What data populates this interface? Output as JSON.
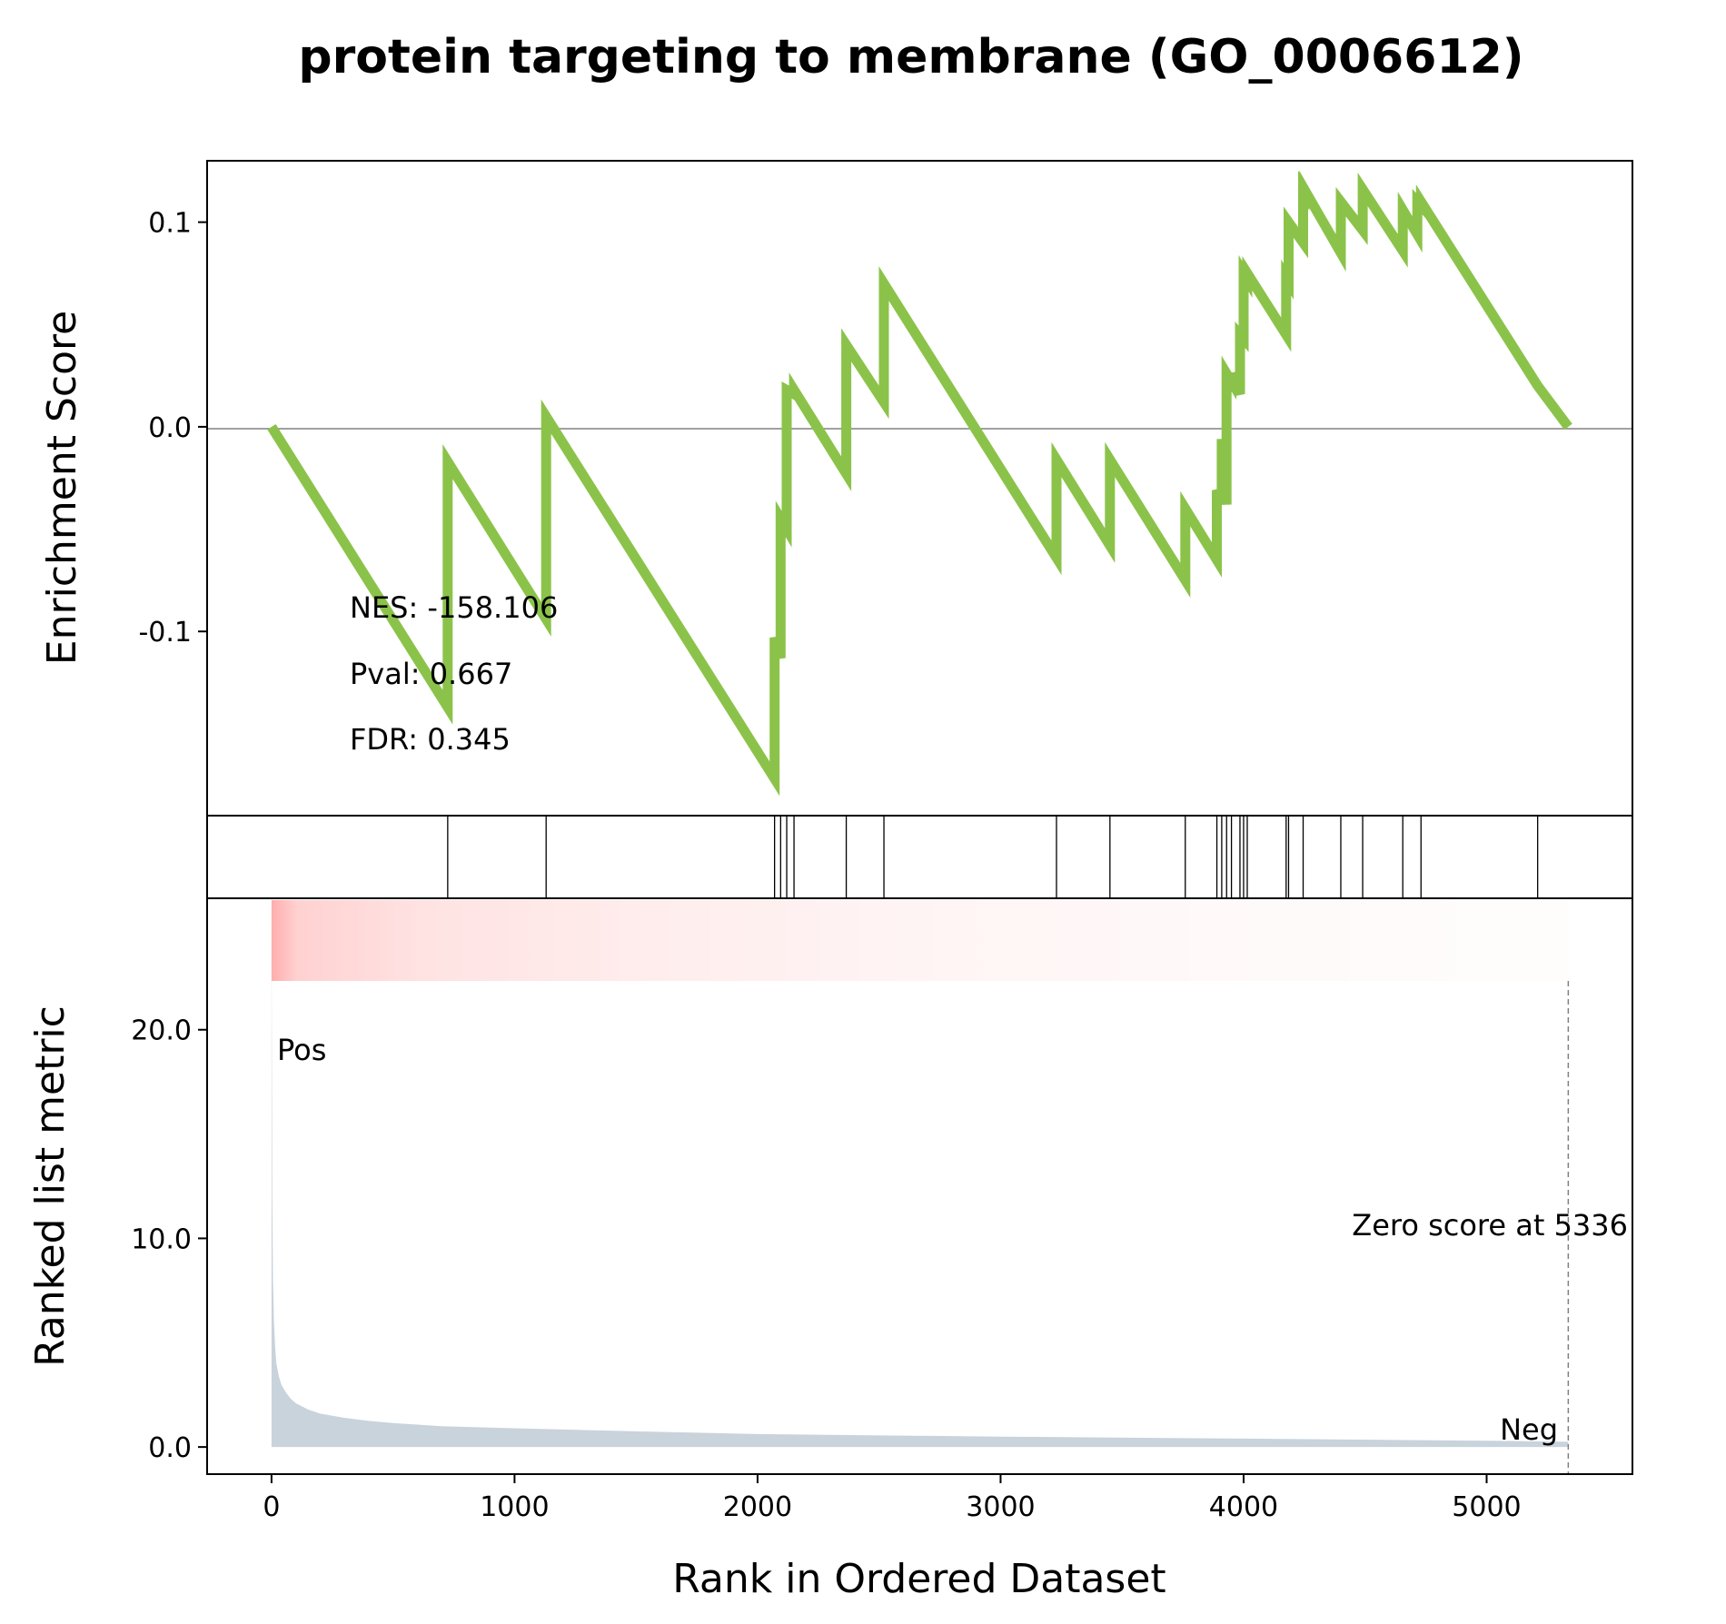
{
  "chart_data": {
    "type": "line",
    "title": "protein targeting to membrane (GO_0006612)",
    "xlabel": "Rank in Ordered Dataset",
    "xlim": [
      -265,
      5600
    ],
    "xticks": [
      0,
      1000,
      2000,
      3000,
      4000,
      5000
    ],
    "panels": {
      "enrichment": {
        "ylabel": "Enrichment Score",
        "ylim": [
          -0.19,
          0.13
        ],
        "yticks": [
          {
            "value": 0.1,
            "label": "0.1"
          },
          {
            "value": 0.0,
            "label": "0.0"
          },
          {
            "value": -0.1,
            "label": "-0.1"
          }
        ],
        "line_color": "#8bc34a",
        "zero_line": true,
        "stats": [
          "NES: -158.106",
          "Pval: 0.667",
          "FDR: 0.345"
        ],
        "series": [
          {
            "x": [
              0,
              725,
              725,
              1130,
              1130,
              2070,
              2070,
              2095,
              2095,
              2120,
              2120,
              2150,
              2150,
              2365,
              2365,
              2520,
              2520,
              3230,
              3230,
              3450,
              3450,
              3760,
              3760,
              3890,
              3890,
              3910,
              3910,
              3930,
              3930,
              3950,
              3950,
              3985,
              3985,
              4000,
              4000,
              4015,
              4015,
              4175,
              4175,
              4185,
              4185,
              4245,
              4245,
              4250,
              4250,
              4400,
              4400,
              4490,
              4490,
              4655,
              4655,
              4715,
              4715,
              4730,
              4730,
              5210,
              5210,
              5336
            ],
            "y": [
              0.0,
              -0.137,
              -0.017,
              -0.094,
              0.005,
              -0.172,
              -0.103,
              -0.113,
              -0.045,
              -0.05,
              0.018,
              0.016,
              0.018,
              -0.023,
              0.04,
              0.012,
              0.07,
              -0.064,
              -0.016,
              -0.058,
              -0.016,
              -0.075,
              -0.04,
              -0.065,
              -0.031,
              -0.036,
              -0.006,
              -0.038,
              0.026,
              0.022,
              0.026,
              0.016,
              0.045,
              0.043,
              0.075,
              0.072,
              0.075,
              0.045,
              0.073,
              0.071,
              0.1,
              0.09,
              0.116,
              0.115,
              0.116,
              0.085,
              0.11,
              0.096,
              0.116,
              0.086,
              0.106,
              0.094,
              0.11,
              0.108,
              0.11,
              0.02,
              0.02,
              0.0
            ]
          }
        ]
      },
      "hits": {
        "positions": [
          725,
          1130,
          2070,
          2095,
          2120,
          2150,
          2365,
          2520,
          3230,
          3450,
          3760,
          3890,
          3910,
          3930,
          3950,
          3985,
          4000,
          4015,
          4175,
          4185,
          4245,
          4400,
          4490,
          4655,
          4730,
          5210
        ]
      },
      "ranked_metric": {
        "ylabel": "Ranked list metric",
        "ylim": [
          -1.3,
          26.3
        ],
        "yticks": [
          {
            "value": 0,
            "label": "0.0"
          },
          {
            "value": 10,
            "label": "10.0"
          },
          {
            "value": 20,
            "label": "20.0"
          }
        ],
        "fill_color": "#c9d3dc",
        "x": [
          0,
          3,
          6,
          10,
          15,
          20,
          30,
          40,
          60,
          80,
          100,
          150,
          200,
          300,
          400,
          500,
          700,
          1000,
          1500,
          2000,
          3000,
          4000,
          5000,
          5336
        ],
        "values": [
          25.0,
          12.0,
          8.0,
          6.0,
          4.8,
          4.0,
          3.4,
          3.0,
          2.6,
          2.3,
          2.1,
          1.8,
          1.6,
          1.4,
          1.25,
          1.15,
          1.0,
          0.9,
          0.75,
          0.62,
          0.5,
          0.4,
          0.3,
          0.25
        ],
        "pos_label": "Pos",
        "neg_label": "Neg",
        "pos_color": "#ff0000",
        "neg_color": "#0000ff",
        "zero_score_annotation": "Zero score at 5336",
        "zero_score_rank": 5336,
        "heat_color": "#ff0000"
      }
    }
  }
}
